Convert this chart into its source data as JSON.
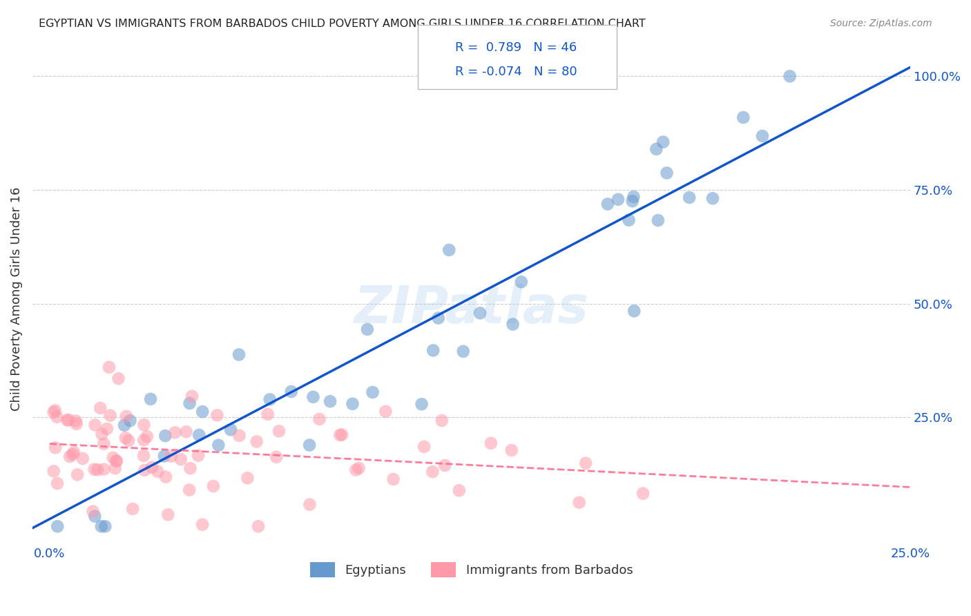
{
  "title": "EGYPTIAN VS IMMIGRANTS FROM BARBADOS CHILD POVERTY AMONG GIRLS UNDER 16 CORRELATION CHART",
  "source": "Source: ZipAtlas.com",
  "ylabel": "Child Poverty Among Girls Under 16",
  "watermark": "ZIPatlas",
  "legend_blue_r_val": "0.789",
  "legend_blue_n_val": "46",
  "legend_pink_r_val": "-0.074",
  "legend_pink_n_val": "80",
  "legend_label_blue": "Egyptians",
  "legend_label_pink": "Immigrants from Barbados",
  "xlim": [
    0,
    0.25
  ],
  "ylim": [
    0,
    1.05
  ],
  "blue_color": "#6699CC",
  "pink_color": "#FF99AA",
  "blue_line_color": "#1155CC",
  "pink_line_color": "#FF6688",
  "grid_color": "#CCCCCC",
  "title_color": "#222222",
  "axis_label_color": "#1155CC"
}
